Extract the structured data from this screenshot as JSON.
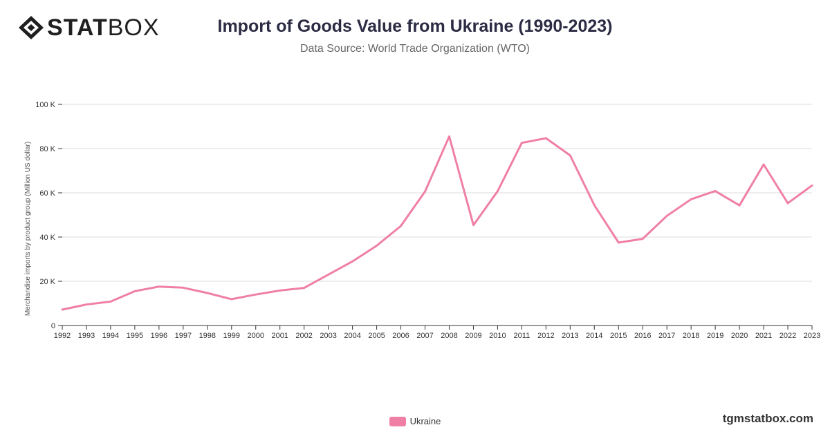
{
  "brand": {
    "logo_bold": "STAT",
    "logo_light": "BOX",
    "footer": "tgmstatbox.com"
  },
  "colors": {
    "series": "#f07fa6",
    "grid": "#dddddd",
    "axis": "#333333",
    "text": "#333333"
  },
  "chart_data": {
    "type": "line",
    "title": "Import of Goods Value from Ukraine (1990-2023)",
    "subtitle": "Data Source: World Trade Organization (WTO)",
    "ylabel": "Merchandise imports by product group (Million US dollar)",
    "xlabel": "",
    "ylim": [
      0,
      100000
    ],
    "yticks": [
      0,
      20000,
      40000,
      60000,
      80000,
      100000
    ],
    "ytick_labels": [
      "0",
      "20 K",
      "40 K",
      "60 K",
      "80 K",
      "100 K"
    ],
    "grid": true,
    "legend_position": "bottom",
    "x": [
      "1992",
      "1993",
      "1994",
      "1995",
      "1996",
      "1997",
      "1998",
      "1999",
      "2000",
      "2001",
      "2002",
      "2003",
      "2004",
      "2005",
      "2006",
      "2007",
      "2008",
      "2009",
      "2010",
      "2011",
      "2012",
      "2013",
      "2014",
      "2015",
      "2016",
      "2017",
      "2018",
      "2019",
      "2020",
      "2021",
      "2022",
      "2023"
    ],
    "series": [
      {
        "name": "Ukraine",
        "values": [
          7200,
          9500,
          10800,
          15500,
          17600,
          17100,
          14700,
          11900,
          14000,
          15800,
          17000,
          23000,
          29000,
          36100,
          45000,
          60600,
          85500,
          45400,
          60700,
          82600,
          84700,
          76900,
          54400,
          37500,
          39200,
          49600,
          57100,
          60800,
          54300,
          72800,
          55300,
          63300
        ]
      }
    ]
  }
}
